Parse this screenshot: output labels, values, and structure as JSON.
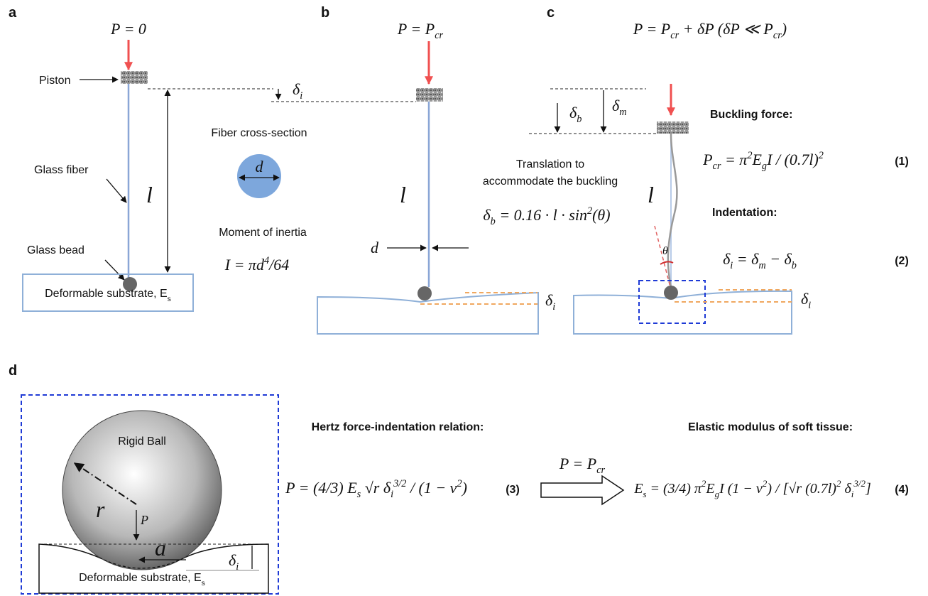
{
  "panels": {
    "a": {
      "label": "a",
      "load": [
        {
          "t": "P = 0"
        }
      ],
      "piston": "Piston",
      "fiber": "Glass fiber",
      "bead": "Glass bead",
      "length": "l",
      "delta": [
        {
          "t": "δ"
        },
        {
          "t": "i",
          "sub": true
        }
      ],
      "substrate": [
        {
          "t": "Deformable substrate, "
        },
        {
          "t": "E"
        },
        {
          "t": "s",
          "sub": true
        }
      ],
      "cross_section": "Fiber cross-section",
      "diameter": "d",
      "inertia_title": "Moment of inertia",
      "inertia": [
        {
          "t": "I = πd"
        },
        {
          "t": "4",
          "sup": true
        },
        {
          "t": "/64"
        }
      ]
    },
    "b": {
      "label": "b",
      "load": [
        {
          "t": "P = P"
        },
        {
          "t": "cr",
          "sub": true
        }
      ],
      "length": "l",
      "diameter": "d",
      "delta": [
        {
          "t": "δ"
        },
        {
          "t": "i",
          "sub": true
        }
      ]
    },
    "c": {
      "label": "c",
      "load": [
        {
          "t": "P = P"
        },
        {
          "t": "cr",
          "sub": true
        },
        {
          "t": " + δP  (δP ≪ P"
        },
        {
          "t": "cr",
          "sub": true
        },
        {
          "t": ")"
        }
      ],
      "delta_b": [
        {
          "t": "δ"
        },
        {
          "t": "b",
          "sub": true
        }
      ],
      "delta_m": [
        {
          "t": "δ"
        },
        {
          "t": "m",
          "sub": true
        }
      ],
      "delta_i": [
        {
          "t": "δ"
        },
        {
          "t": "i",
          "sub": true
        }
      ],
      "translation": [
        "Translation to",
        "accommodate the buckling"
      ],
      "translation_eq": [
        {
          "t": "δ"
        },
        {
          "t": "b",
          "sub": true
        },
        {
          "t": " = 0.16 · l · sin"
        },
        {
          "t": "2",
          "sup": true
        },
        {
          "t": "(θ)"
        }
      ],
      "length": "l",
      "theta": "θ",
      "buckling_title": "Buckling force:",
      "eq1": [
        {
          "t": "P"
        },
        {
          "t": "cr",
          "sub": true
        },
        {
          "t": " = π"
        },
        {
          "t": "2",
          "sup": true
        },
        {
          "t": "E"
        },
        {
          "t": "g",
          "sub": true
        },
        {
          "t": "I / (0.7l)"
        },
        {
          "t": "2",
          "sup": true
        }
      ],
      "eq1_number": "(1)",
      "indentation_title": "Indentation:",
      "eq2": [
        {
          "t": "δ"
        },
        {
          "t": "i",
          "sub": true
        },
        {
          "t": " = δ"
        },
        {
          "t": "m",
          "sub": true
        },
        {
          "t": " − δ"
        },
        {
          "t": "b",
          "sub": true
        }
      ],
      "eq2_number": "(2)"
    },
    "d": {
      "label": "d",
      "ball": "Rigid Ball",
      "radius": "r",
      "force": "P",
      "contact": "a",
      "delta": [
        {
          "t": "δ"
        },
        {
          "t": "i",
          "sub": true
        }
      ],
      "substrate": [
        {
          "t": "Deformable  substrate, "
        },
        {
          "t": "E"
        },
        {
          "t": "s",
          "sub": true
        }
      ],
      "hertz_title": "Hertz force-indentation relation:",
      "eq3": [
        {
          "t": "P = (4/3) E"
        },
        {
          "t": "s",
          "sub": true
        },
        {
          "t": " √r δ"
        },
        {
          "t": "i",
          "sub": true
        },
        {
          "t": "3/2",
          "sup": true
        },
        {
          "t": " / (1 − ν"
        },
        {
          "t": "2",
          "sup": true
        },
        {
          "t": ")"
        }
      ],
      "eq3_number": "(3)",
      "condition": [
        {
          "t": "P = P"
        },
        {
          "t": "cr",
          "sub": true
        }
      ],
      "modulus_title": "Elastic modulus of soft tissue:",
      "eq4": [
        {
          "t": "E"
        },
        {
          "t": "s",
          "sub": true
        },
        {
          "t": " = (3/4) π"
        },
        {
          "t": "2",
          "sup": true
        },
        {
          "t": "E"
        },
        {
          "t": "g",
          "sub": true
        },
        {
          "t": "I (1 − ν"
        },
        {
          "t": "2",
          "sup": true
        },
        {
          "t": ") / [√r (0.7l)"
        },
        {
          "t": "2",
          "sup": true
        },
        {
          "t": " δ"
        },
        {
          "t": "i",
          "sub": true
        },
        {
          "t": "3/2",
          "sup": true
        },
        {
          "t": "]"
        }
      ],
      "eq4_number": "(4)"
    }
  }
}
